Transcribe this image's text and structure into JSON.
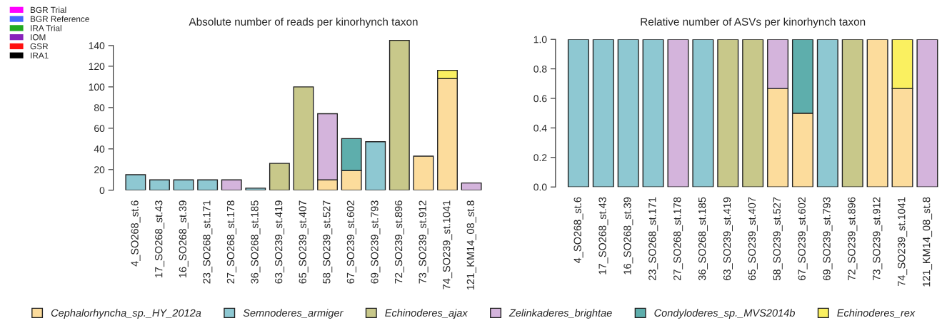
{
  "chart_data": [
    {
      "type": "bar",
      "title": "Absolute number of reads per kinorhynch taxon",
      "stacked": true,
      "legend": "bottom",
      "categories": [
        "4_SO268_st.6",
        "17_SO268_st.43",
        "16_SO268_st.39",
        "23_SO268_st.171",
        "27_SO268_st.178",
        "36_SO268_st.185",
        "63_SO239_st.419",
        "65_SO239_st.407",
        "58_SO239_st.527",
        "67_SO239_st.602",
        "69_SO239_st.793",
        "72_SO239_st.896",
        "73_SO239_st.912",
        "74_SO239_st.1041",
        "121_KM14_08_st.8"
      ],
      "series": [
        {
          "name": "Cephalorhyncha_sp._HY_2012a",
          "color": "#fcdc9c",
          "values": [
            null,
            null,
            null,
            null,
            null,
            null,
            null,
            null,
            10,
            19,
            null,
            null,
            33,
            108,
            null
          ]
        },
        {
          "name": "Semnoderes_armiger",
          "color": "#8ec8d2",
          "values": [
            15,
            10,
            10,
            10,
            null,
            2,
            null,
            null,
            null,
            null,
            47,
            null,
            null,
            null,
            null
          ]
        },
        {
          "name": "Echinoderes_ajax",
          "color": "#c8c88a",
          "values": [
            null,
            null,
            null,
            null,
            null,
            null,
            26,
            100,
            null,
            null,
            null,
            145,
            null,
            null,
            null
          ]
        },
        {
          "name": "Zelinkaderes_brightae",
          "color": "#d4b4dc",
          "values": [
            null,
            null,
            null,
            null,
            10,
            null,
            null,
            null,
            64,
            null,
            null,
            null,
            null,
            null,
            7
          ]
        },
        {
          "name": "Condyloderes_sp._MVS2014b",
          "color": "#5eaeac",
          "values": [
            null,
            null,
            null,
            null,
            null,
            null,
            null,
            null,
            null,
            31,
            null,
            null,
            null,
            null,
            null
          ]
        },
        {
          "name": "Echinoderes_rex",
          "color": "#faf060",
          "values": [
            null,
            null,
            null,
            null,
            null,
            null,
            null,
            null,
            null,
            null,
            null,
            null,
            null,
            8,
            null
          ]
        }
      ],
      "ylim": [
        0,
        146
      ],
      "yticks": [
        0,
        20,
        40,
        60,
        80,
        100,
        120,
        140
      ]
    },
    {
      "type": "bar",
      "title": "Relative number of ASVs per kinorhynch taxon",
      "stacked": true,
      "categories": [
        "4_SO268_st.6",
        "17_SO268_st.43",
        "16_SO268_st.39",
        "23_SO268_st.171",
        "27_SO268_st.178",
        "36_SO268_st.185",
        "63_SO239_st.419",
        "65_SO239_st.407",
        "58_SO239_st.527",
        "67_SO239_st.602",
        "69_SO239_st.793",
        "72_SO239_st.896",
        "73_SO239_st.912",
        "74_SO239_st.1041",
        "121_KM14_08_st.8"
      ],
      "series": [
        {
          "color": "#fcdc9c",
          "values": [
            null,
            null,
            null,
            null,
            null,
            null,
            null,
            null,
            0.667,
            0.5,
            null,
            null,
            1,
            0.667,
            null
          ]
        },
        {
          "color": "#8ec8d2",
          "values": [
            1,
            1,
            1,
            1,
            null,
            1,
            null,
            null,
            null,
            null,
            1,
            null,
            null,
            null,
            null
          ]
        },
        {
          "color": "#c8c88a",
          "values": [
            null,
            null,
            null,
            null,
            null,
            null,
            1,
            1,
            null,
            null,
            null,
            1,
            null,
            null,
            null
          ]
        },
        {
          "color": "#d4b4dc",
          "values": [
            null,
            null,
            null,
            null,
            1,
            null,
            null,
            null,
            0.333,
            null,
            null,
            null,
            null,
            null,
            1
          ]
        },
        {
          "color": "#5eaeac",
          "values": [
            null,
            null,
            null,
            null,
            null,
            null,
            null,
            null,
            null,
            0.5,
            null,
            null,
            null,
            null,
            null
          ]
        },
        {
          "color": "#faf060",
          "values": [
            null,
            null,
            null,
            null,
            null,
            null,
            null,
            null,
            null,
            null,
            null,
            null,
            null,
            0.333,
            null
          ]
        }
      ],
      "ylim": [
        0,
        1.0
      ],
      "yticks": [
        {
          "value": 0,
          "label": "0.0"
        },
        {
          "value": 0.2,
          "label": "0.2"
        },
        {
          "value": 0.4,
          "label": "0.4"
        },
        {
          "value": 0.6,
          "label": "0.6"
        },
        {
          "value": 0.8,
          "label": "0.8"
        },
        {
          "value": 1.0,
          "label": "1.0"
        }
      ]
    },
    {
      "type": "other",
      "categories": [
        "BGR Trial",
        "BGR Reference",
        "IRA Trial",
        "IOM",
        "GSR",
        "IRA1"
      ],
      "colors": [
        "#ff00ff",
        "#4466ff",
        "#22aa22",
        "#8822bb",
        "#ff1111",
        "#000000"
      ]
    }
  ]
}
